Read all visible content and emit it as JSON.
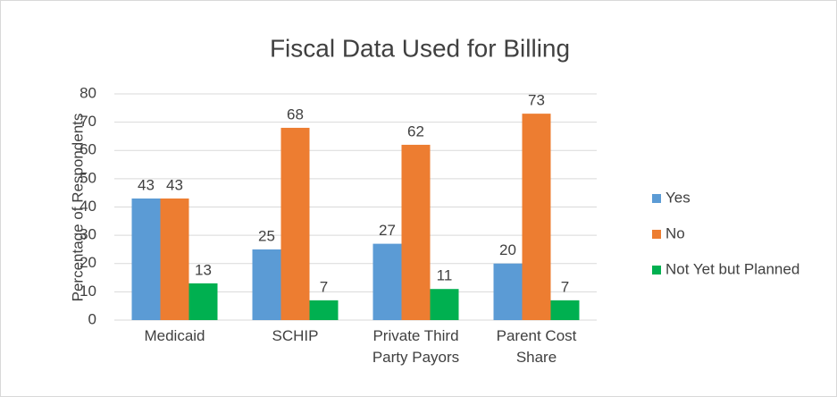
{
  "chart_data": {
    "type": "bar",
    "title": "Fiscal Data Used for Billing",
    "y_label": "Percentage of Respondents",
    "categories": [
      "Medicaid",
      "SCHIP",
      "Private Third Party Payors",
      "Parent Cost Share"
    ],
    "series": [
      {
        "name": "Yes",
        "color": "#5b9bd5",
        "values": [
          43,
          25,
          27,
          20
        ]
      },
      {
        "name": "No",
        "color": "#ed7d31",
        "values": [
          43,
          68,
          62,
          73
        ]
      },
      {
        "name": "Not Yet but Planned",
        "color": "#00b050",
        "values": [
          13,
          7,
          11,
          7
        ]
      }
    ],
    "ylim": [
      0,
      80
    ],
    "yticks": [
      0,
      10,
      20,
      30,
      40,
      50,
      60,
      70,
      80
    ],
    "grid": true,
    "legend": "right"
  }
}
